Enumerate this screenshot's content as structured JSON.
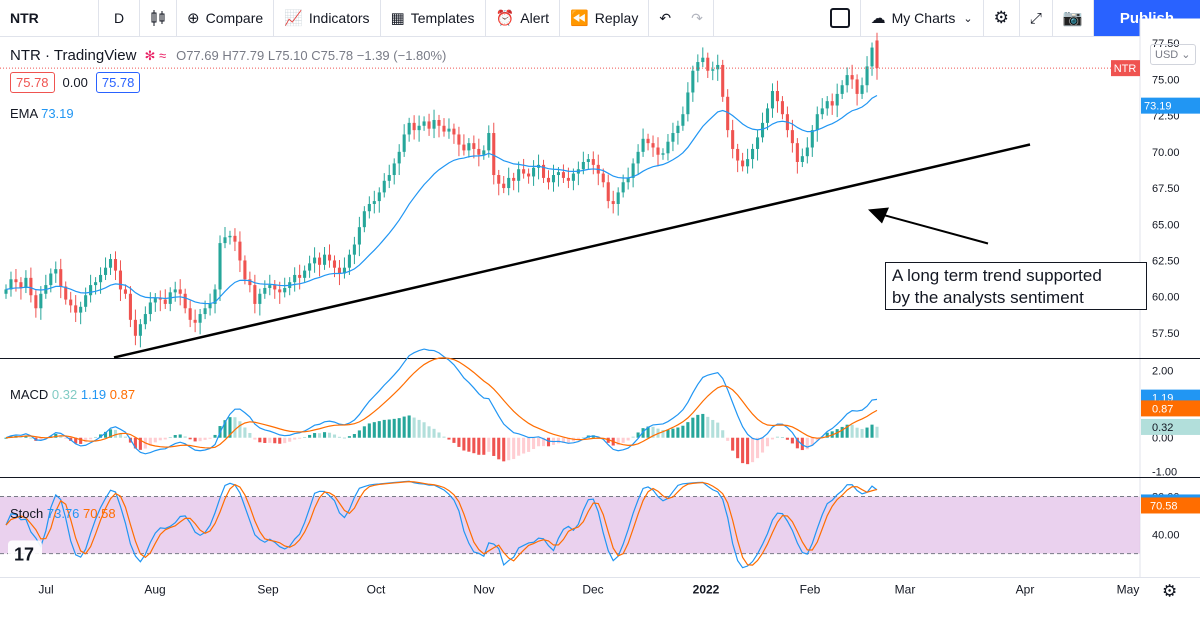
{
  "toolbar": {
    "symbol": "NTR",
    "interval": "D",
    "compare": "Compare",
    "indicators": "Indicators",
    "templates": "Templates",
    "alert": "Alert",
    "replay": "Replay",
    "my_charts": "My Charts",
    "publish": "Publish"
  },
  "legend": {
    "title": "NTR · TradingView",
    "ohlc": "O77.69 H77.79 L75.10 C75.78 −1.39 (−1.80%)",
    "bid": "75.78",
    "spread": "0.00",
    "ask": "75.78",
    "ema_label": "EMA",
    "ema_value": "73.19",
    "macd_label": "MACD",
    "macd_hist": "0.32",
    "macd_line": "1.19",
    "macd_signal": "0.87",
    "stoch_label": "Stoch",
    "stoch_k": "73.76",
    "stoch_d": "70.58",
    "currency": "USD"
  },
  "annotation": [
    "A long term trend supported",
    "by the analysts sentiment"
  ],
  "colors": {
    "up": "#26a69a",
    "down": "#ef5350",
    "ema": "#2196f3",
    "macd": "#2196f3",
    "signal": "#ff6d00",
    "stoch_band": "#e1bee7",
    "accent": "#2962ff"
  },
  "chart_data": [
    {
      "type": "candlestick",
      "title": "NTR · TradingView",
      "x_ticks": [
        "Jul",
        "Aug",
        "Sep",
        "Oct",
        "Nov",
        "Dec",
        "2022",
        "Feb",
        "Mar",
        "Apr",
        "May"
      ],
      "y_ticks": [
        "57.50",
        "60.00",
        "62.50",
        "65.00",
        "67.50",
        "70.00",
        "72.50",
        "75.00",
        "77.50"
      ],
      "ylim": [
        55.8,
        79.0
      ],
      "last_price": 75.78,
      "last_label": "NTR",
      "ema_last": 73.19,
      "close_series": [
        60.5,
        61.2,
        61.0,
        60.6,
        61.3,
        60.1,
        59.2,
        60.2,
        60.8,
        61.6,
        61.9,
        60.7,
        59.8,
        59.4,
        58.9,
        59.3,
        60.1,
        60.8,
        61.0,
        61.5,
        62.0,
        62.6,
        61.8,
        60.5,
        60.2,
        58.4,
        57.3,
        58.1,
        58.8,
        59.6,
        59.9,
        59.8,
        59.5,
        60.3,
        60.5,
        60.2,
        59.2,
        58.4,
        58.2,
        58.8,
        59.2,
        59.5,
        60.5,
        63.7,
        64.1,
        64.2,
        63.8,
        62.5,
        61.2,
        60.8,
        59.5,
        60.2,
        60.6,
        60.8,
        60.5,
        60.3,
        60.6,
        61.0,
        61.5,
        61.3,
        61.8,
        62.3,
        62.7,
        62.2,
        62.9,
        62.5,
        62.0,
        61.6,
        62.0,
        62.9,
        63.6,
        64.8,
        65.9,
        66.4,
        66.6,
        67.2,
        68.0,
        68.4,
        69.2,
        70.0,
        71.2,
        72.0,
        71.5,
        71.8,
        72.1,
        71.6,
        72.2,
        71.8,
        71.4,
        71.6,
        71.2,
        70.5,
        70.1,
        70.6,
        70.2,
        69.8,
        70.1,
        71.3,
        68.4,
        67.8,
        67.5,
        68.2,
        68.0,
        68.8,
        68.5,
        68.3,
        68.9,
        69.1,
        68.2,
        67.9,
        68.4,
        68.6,
        68.2,
        68.0,
        68.5,
        68.8,
        69.3,
        69.5,
        69.1,
        68.5,
        67.9,
        66.6,
        66.4,
        67.2,
        67.9,
        68.2,
        69.2,
        70.0,
        70.9,
        70.6,
        70.3,
        69.8,
        69.9,
        70.7,
        71.3,
        71.8,
        72.6,
        74.1,
        75.6,
        76.2,
        76.5,
        75.6,
        75.7,
        76.0,
        73.8,
        71.5,
        70.2,
        69.4,
        69.0,
        69.5,
        70.2,
        71.0,
        72.0,
        73.0,
        74.2,
        73.5,
        72.6,
        71.5,
        70.6,
        69.3,
        69.7,
        70.3,
        71.5,
        72.6,
        73.0,
        73.5,
        73.2,
        74.0,
        74.6,
        75.3,
        75.0,
        74.0,
        74.6,
        75.9,
        77.2,
        75.78
      ]
    },
    {
      "type": "macd",
      "series_names": [
        "Histogram",
        "MACD",
        "Signal"
      ],
      "last_values": [
        0.32,
        1.19,
        0.87
      ],
      "y_ticks": [
        "2.00",
        "1.00",
        "0.00",
        "-1.00"
      ],
      "ylim": [
        -1.15,
        2.35
      ]
    },
    {
      "type": "stochastic",
      "series_names": [
        "%K",
        "%D"
      ],
      "last_values": [
        73.76,
        70.58
      ],
      "y_ticks": [
        "80.00",
        "40.00"
      ],
      "band": [
        20,
        80
      ],
      "ylim": [
        -2,
        100
      ]
    }
  ]
}
